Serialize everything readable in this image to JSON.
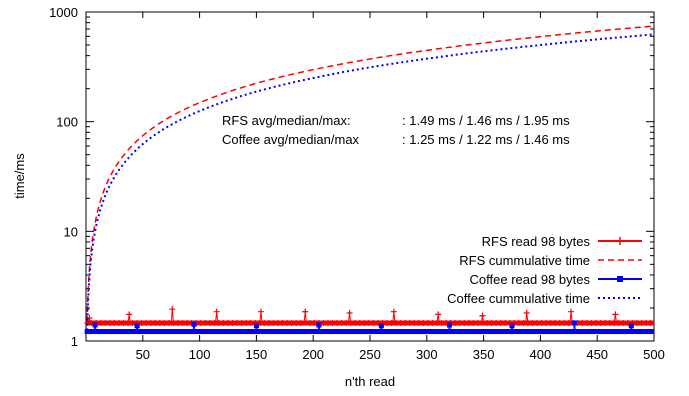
{
  "chart_data": {
    "type": "line",
    "xlabel": "n'th read",
    "ylabel": "time/ms",
    "xlim": [
      0,
      500
    ],
    "ylim": [
      1,
      1000
    ],
    "yscale": "log",
    "grid": false,
    "legend_position": "bottom-right",
    "x_ticks": [
      50,
      100,
      150,
      200,
      250,
      300,
      350,
      400,
      450,
      500
    ],
    "y_ticks": [
      1,
      10,
      100,
      1000
    ],
    "x_tick_labels": [
      "50",
      "100",
      "150",
      "200",
      "250",
      "300",
      "350",
      "400",
      "450",
      "500"
    ],
    "y_tick_labels": [
      "1",
      "10",
      "100",
      "1000"
    ],
    "annotations": [
      {
        "label": "RFS avg/median/max:",
        "value": ": 1.49 ms / 1.46 ms / 1.95 ms"
      },
      {
        "label": "Coffee avg/median/max",
        "value": ": 1.25 ms / 1.22 ms / 1.46 ms"
      }
    ],
    "series": [
      {
        "name": "RFS read 98 bytes",
        "style": "solid",
        "marker": "plus",
        "color": "#ff0000",
        "baseline": 1.46,
        "spikes": [
          [
            3,
            1.62
          ],
          [
            38,
            1.75
          ],
          [
            76,
            1.95
          ],
          [
            115,
            1.85
          ],
          [
            154,
            1.85
          ],
          [
            193,
            1.85
          ],
          [
            232,
            1.8
          ],
          [
            271,
            1.85
          ],
          [
            310,
            1.75
          ],
          [
            349,
            1.7
          ],
          [
            388,
            1.8
          ],
          [
            427,
            1.85
          ],
          [
            466,
            1.75
          ]
        ]
      },
      {
        "name": "RFS cummulative  time",
        "style": "dashed",
        "color": "#ff0000",
        "points": [
          [
            1,
            1.49
          ],
          [
            2,
            2.98
          ],
          [
            3,
            4.47
          ],
          [
            5,
            7.45
          ],
          [
            8,
            11.9
          ],
          [
            12,
            17.9
          ],
          [
            20,
            29.8
          ],
          [
            30,
            44.7
          ],
          [
            50,
            74.5
          ],
          [
            75,
            112
          ],
          [
            100,
            149
          ],
          [
            150,
            224
          ],
          [
            200,
            298
          ],
          [
            250,
            373
          ],
          [
            300,
            447
          ],
          [
            350,
            522
          ],
          [
            400,
            596
          ],
          [
            450,
            671
          ],
          [
            500,
            745
          ]
        ]
      },
      {
        "name": "Coffee read 98 bytes",
        "style": "solid",
        "marker": "square",
        "color": "#0000ff",
        "baseline": 1.22,
        "spikes": [
          [
            8,
            1.4
          ],
          [
            45,
            1.38
          ],
          [
            95,
            1.42
          ],
          [
            150,
            1.38
          ],
          [
            205,
            1.4
          ],
          [
            260,
            1.38
          ],
          [
            320,
            1.4
          ],
          [
            375,
            1.38
          ],
          [
            430,
            1.46
          ],
          [
            480,
            1.38
          ]
        ]
      },
      {
        "name": "Coffee cummulative time",
        "style": "dotted",
        "color": "#0000ff",
        "points": [
          [
            1,
            1.25
          ],
          [
            2,
            2.5
          ],
          [
            3,
            3.75
          ],
          [
            5,
            6.25
          ],
          [
            8,
            10
          ],
          [
            12,
            15
          ],
          [
            20,
            25
          ],
          [
            30,
            37.5
          ],
          [
            50,
            62.5
          ],
          [
            75,
            93.8
          ],
          [
            100,
            125
          ],
          [
            150,
            188
          ],
          [
            200,
            250
          ],
          [
            250,
            313
          ],
          [
            300,
            375
          ],
          [
            350,
            438
          ],
          [
            400,
            500
          ],
          [
            450,
            563
          ],
          [
            500,
            625
          ]
        ]
      }
    ]
  }
}
